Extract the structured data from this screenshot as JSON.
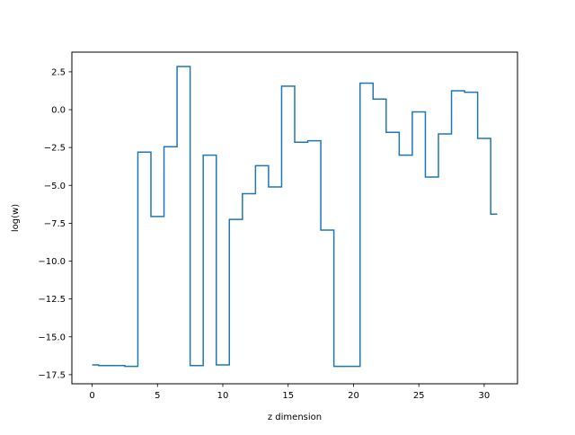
{
  "chart_data": {
    "type": "line",
    "drawstyle": "steps-mid",
    "xlabel": "z dimension",
    "ylabel": "log(w)",
    "xlim": [
      -1.55,
      32.55
    ],
    "ylim": [
      -18.1,
      3.8
    ],
    "xticks": [
      0,
      5,
      10,
      15,
      20,
      25,
      30
    ],
    "xtick_labels": [
      "0",
      "5",
      "10",
      "15",
      "20",
      "25",
      "30"
    ],
    "yticks": [
      2.5,
      0.0,
      -2.5,
      -5.0,
      -7.5,
      -10.0,
      -12.5,
      -15.0,
      -17.5
    ],
    "ytick_labels": [
      "2.5",
      "0.0",
      "−2.5",
      "−5.0",
      "−7.5",
      "−10.0",
      "−12.5",
      "−15.0",
      "−17.5"
    ],
    "grid": false,
    "color": "#1f77b4",
    "series": [
      {
        "x": [
          0,
          1,
          2,
          3,
          4,
          5,
          6,
          7,
          8,
          9,
          10,
          11,
          12,
          13,
          14,
          15,
          16,
          17,
          18,
          19,
          20,
          21,
          22,
          23,
          24,
          25,
          26,
          27,
          28,
          29,
          30,
          31
        ],
        "values": [
          -16.85,
          -16.9,
          -16.9,
          -16.95,
          -2.8,
          -7.05,
          -2.45,
          2.85,
          -16.9,
          -3.0,
          -16.85,
          -7.25,
          -5.55,
          -3.7,
          -5.1,
          1.55,
          -2.15,
          -2.05,
          -7.95,
          -16.95,
          -16.95,
          1.75,
          0.7,
          -1.5,
          -3.0,
          -0.15,
          -4.45,
          -1.6,
          1.25,
          1.15,
          -1.9,
          -6.9
        ]
      }
    ]
  }
}
